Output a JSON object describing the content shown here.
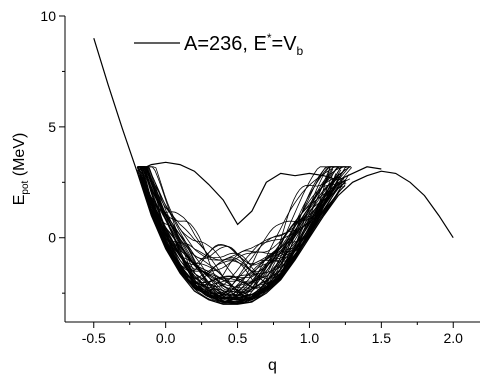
{
  "chart_data": {
    "type": "line",
    "title": "",
    "xlabel": "q",
    "ylabel_main": "E",
    "ylabel_sub": "pot",
    "ylabel_rest": " (MeV)",
    "xlim": [
      -0.7,
      2.2
    ],
    "ylim": [
      -3.8,
      10
    ],
    "x_ticks": [
      -0.5,
      0.0,
      0.5,
      1.0,
      1.5,
      2.0
    ],
    "x_tick_labels": [
      "-0.5",
      "0.0",
      "0.5",
      "1.0",
      "1.5",
      "2.0"
    ],
    "y_ticks": [
      0,
      5,
      10
    ],
    "y_tick_labels": [
      "0",
      "5",
      "10"
    ],
    "grid": false,
    "legend": {
      "position": "top-center",
      "label_main": "A=236,  E",
      "label_sup": "*",
      "label_mid": "=V",
      "label_sub": "b"
    },
    "series": [
      {
        "name": "A=236, E*=Vb",
        "description": "envelope potential",
        "x": [
          -0.5,
          -0.4,
          -0.3,
          -0.2,
          -0.1,
          0.0,
          0.1,
          0.2,
          0.3,
          0.4,
          0.5,
          0.6,
          0.7,
          0.8,
          0.9,
          1.0,
          1.1,
          1.2,
          1.3,
          1.4,
          1.5,
          1.6,
          1.7,
          1.8,
          1.9,
          2.0
        ],
        "values": [
          9.0,
          6.9,
          4.9,
          3.0,
          1.0,
          -0.5,
          -1.6,
          -2.4,
          -2.8,
          -3.0,
          -3.0,
          -2.9,
          -2.5,
          -1.9,
          -1.0,
          0.0,
          1.0,
          1.9,
          2.5,
          2.8,
          3.0,
          2.9,
          2.5,
          1.9,
          1.0,
          0.0
        ]
      },
      {
        "name": "",
        "description": "upper trajectory",
        "x": [
          -0.2,
          -0.1,
          0.0,
          0.1,
          0.2,
          0.3,
          0.4,
          0.5,
          0.6,
          0.7,
          0.8,
          0.9,
          1.0,
          1.1,
          1.2,
          1.3,
          1.4,
          1.5
        ],
        "values": [
          3.0,
          3.3,
          3.4,
          3.3,
          3.0,
          2.4,
          1.7,
          0.6,
          1.2,
          2.5,
          2.9,
          2.8,
          2.9,
          2.8,
          2.6,
          2.9,
          3.2,
          3.1
        ]
      }
    ],
    "fan_band": {
      "x_start": -0.2,
      "x_end": 1.3,
      "count": 60
    }
  }
}
